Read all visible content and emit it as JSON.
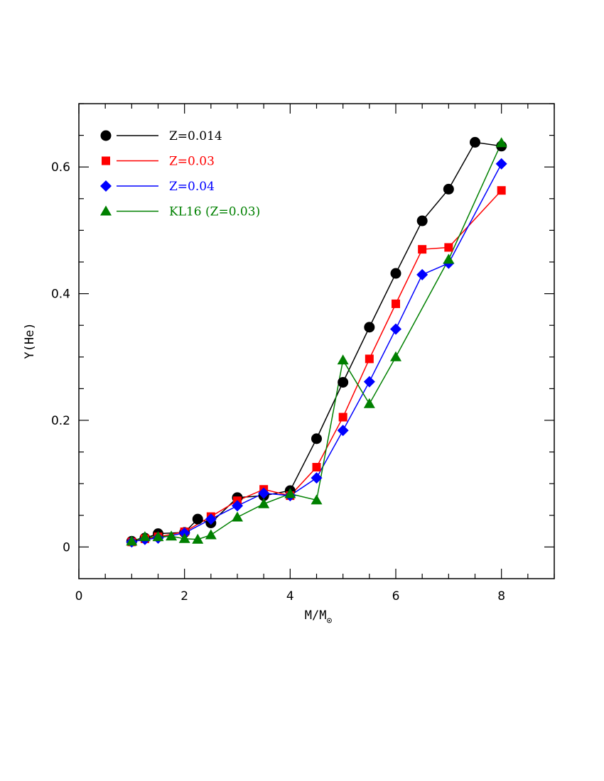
{
  "chart_data": {
    "type": "line",
    "xlabel": "M/M",
    "xlabel_subscript": "⊙",
    "ylabel": "Y(He)",
    "xlim": [
      0,
      9
    ],
    "ylim": [
      -0.05,
      0.7
    ],
    "x_ticks": [
      0,
      2,
      4,
      6,
      8
    ],
    "x_tick_labels": [
      "0",
      "2",
      "4",
      "6",
      "8"
    ],
    "y_ticks": [
      0,
      0.2,
      0.4,
      0.6
    ],
    "y_tick_labels": [
      "0",
      "0.2",
      "0.4",
      "0.6"
    ],
    "grid": false,
    "legend_position": "top-left",
    "series": [
      {
        "name": "Z=0.014",
        "color": "#000000",
        "marker": "circle",
        "x": [
          1,
          1.25,
          1.5,
          2,
          2.25,
          2.5,
          3,
          3.5,
          4,
          4.5,
          5,
          5.5,
          6,
          6.5,
          7,
          7.5,
          8
        ],
        "y": [
          0.009,
          0.014,
          0.021,
          0.023,
          0.044,
          0.038,
          0.078,
          0.081,
          0.089,
          0.171,
          0.26,
          0.347,
          0.432,
          0.515,
          0.565,
          0.639,
          0.633
        ]
      },
      {
        "name": "Z=0.03",
        "color": "#ff0000",
        "marker": "square",
        "x": [
          1,
          1.25,
          1.5,
          2,
          2.5,
          3,
          3.5,
          4,
          4.5,
          5,
          5.5,
          6,
          6.5,
          7,
          8
        ],
        "y": [
          0.008,
          0.013,
          0.016,
          0.024,
          0.048,
          0.073,
          0.091,
          0.081,
          0.126,
          0.205,
          0.297,
          0.384,
          0.47,
          0.473,
          0.563
        ]
      },
      {
        "name": "Z=0.04",
        "color": "#0000ff",
        "marker": "diamond",
        "x": [
          1,
          1.25,
          1.5,
          2,
          2.5,
          3,
          3.5,
          4,
          4.5,
          5,
          5.5,
          6,
          6.5,
          7,
          8
        ],
        "y": [
          0.008,
          0.012,
          0.014,
          0.022,
          0.044,
          0.065,
          0.085,
          0.081,
          0.109,
          0.184,
          0.261,
          0.344,
          0.43,
          0.448,
          0.605
        ]
      },
      {
        "name": "KL16 (Z=0.03)",
        "color": "#008000",
        "marker": "triangle",
        "x": [
          1,
          1.25,
          1.5,
          1.75,
          2,
          2.25,
          2.5,
          3,
          3.5,
          4,
          4.5,
          5,
          5.5,
          6,
          7,
          8
        ],
        "y": [
          0.009,
          0.016,
          0.016,
          0.017,
          0.013,
          0.012,
          0.019,
          0.047,
          0.068,
          0.084,
          0.074,
          0.295,
          0.226,
          0.3,
          0.454,
          0.638
        ]
      }
    ]
  }
}
